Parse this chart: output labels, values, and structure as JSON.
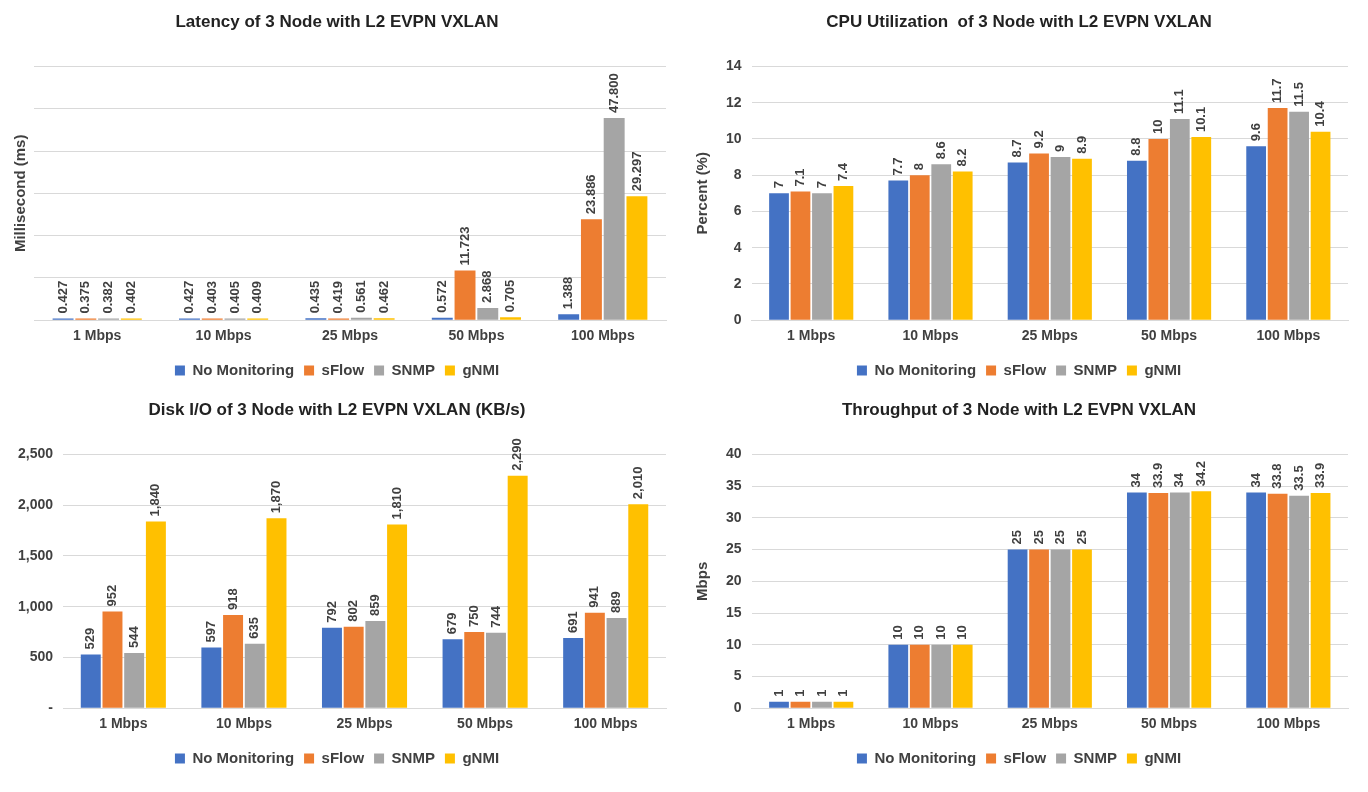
{
  "chart_data": [
    {
      "type": "bar",
      "title": "Latency of 3 Node with L2 EVPN VXLAN",
      "ylabel": "Millisecond (ms)",
      "categories": [
        "1 Mbps",
        "10 Mbps",
        "25 Mbps",
        "50 Mbps",
        "100 Mbps"
      ],
      "ylim": [
        0,
        60
      ],
      "yticks": [
        {
          "value": 0,
          "label": null
        },
        {
          "value": 10,
          "label": null
        },
        {
          "value": 20,
          "label": null
        },
        {
          "value": 30,
          "label": null
        },
        {
          "value": 40,
          "label": null
        },
        {
          "value": 50,
          "label": null
        },
        {
          "value": 60,
          "label": null
        }
      ],
      "tick_labels": "x",
      "grid": "y",
      "legend": "bottom",
      "series": [
        {
          "name": "No Monitoring",
          "color": "#4472c4",
          "values": [
            0.427,
            0.427,
            0.435,
            0.572,
            1.388
          ],
          "value_labels": [
            "0.427",
            "0.427",
            "0.435",
            "0.572",
            "1.388"
          ]
        },
        {
          "name": "sFlow",
          "color": "#ed7d31",
          "values": [
            0.375,
            0.403,
            0.419,
            11.723,
            23.886
          ],
          "value_labels": [
            "0.375",
            "0.403",
            "0.419",
            "11.723",
            "23.886"
          ]
        },
        {
          "name": "SNMP",
          "color": "#a5a5a5",
          "values": [
            0.382,
            0.405,
            0.561,
            2.868,
            47.8
          ],
          "value_labels": [
            "0.382",
            "0.405",
            "0.561",
            "2.868",
            "47.800"
          ]
        },
        {
          "name": "gNMI",
          "color": "#ffc000",
          "values": [
            0.402,
            0.409,
            0.462,
            0.705,
            29.297
          ],
          "value_labels": [
            "0.402",
            "0.409",
            "0.462",
            "0.705",
            "29.297"
          ]
        }
      ]
    },
    {
      "type": "bar",
      "title": "CPU Utilization  of 3 Node with L2 EVPN VXLAN",
      "ylabel": "Percent (%)",
      "categories": [
        "1 Mbps",
        "10 Mbps",
        "25 Mbps",
        "50 Mbps",
        "100 Mbps"
      ],
      "ylim": [
        0,
        14
      ],
      "yticks": [
        0,
        2,
        4,
        6,
        8,
        10,
        12,
        14
      ],
      "grid": "y",
      "legend": "bottom",
      "data_labels": true,
      "series": [
        {
          "name": "No Monitoring",
          "color": "#4472c4",
          "values": [
            7,
            7.7,
            8.7,
            8.8,
            9.6
          ]
        },
        {
          "name": "sFlow",
          "color": "#ed7d31",
          "values": [
            7.1,
            8,
            9.2,
            10,
            11.7
          ]
        },
        {
          "name": "SNMP",
          "color": "#a5a5a5",
          "values": [
            7,
            8.6,
            9,
            11.1,
            11.5
          ]
        },
        {
          "name": "gNMI",
          "color": "#ffc000",
          "values": [
            7.4,
            8.2,
            8.9,
            10.1,
            10.4
          ]
        }
      ]
    },
    {
      "type": "bar",
      "title": "Disk I/O of 3 Node with L2 EVPN VXLAN (KB/s)",
      "categories": [
        "1 Mbps",
        "10 Mbps",
        "25 Mbps",
        "50 Mbps",
        "100 Mbps"
      ],
      "ylim": [
        0,
        2500
      ],
      "yticks": [
        {
          "value": 0,
          "label": "-"
        },
        500,
        {
          "value": 1000,
          "label": "1,000"
        },
        {
          "value": 1500,
          "label": "1,500"
        },
        {
          "value": 2000,
          "label": "2,000"
        },
        {
          "value": 2500,
          "label": "2,500"
        }
      ],
      "grid": "y",
      "legend": "bottom",
      "series": [
        {
          "name": "No Monitoring",
          "color": "#4472c4",
          "values": [
            529,
            597,
            792,
            679,
            691
          ],
          "value_labels": [
            "529",
            "597",
            "792",
            "679",
            "691"
          ]
        },
        {
          "name": "sFlow",
          "color": "#ed7d31",
          "values": [
            952,
            918,
            802,
            750,
            941
          ],
          "value_labels": [
            "952",
            "918",
            "802",
            "750",
            "941"
          ]
        },
        {
          "name": "SNMP",
          "color": "#a5a5a5",
          "values": [
            544,
            635,
            859,
            744,
            889
          ],
          "value_labels": [
            "544",
            "635",
            "859",
            "744",
            "889"
          ]
        },
        {
          "name": "gNMI",
          "color": "#ffc000",
          "values": [
            1840,
            1870,
            1810,
            2290,
            2010
          ],
          "value_labels": [
            "1,840",
            "1,870",
            "1,810",
            "2,290",
            "2,010"
          ]
        }
      ]
    },
    {
      "type": "bar",
      "title": "Throughput of 3 Node with L2 EVPN VXLAN",
      "ylabel": "Mbps",
      "categories": [
        "1 Mbps",
        "10 Mbps",
        "25 Mbps",
        "50 Mbps",
        "100 Mbps"
      ],
      "ylim": [
        0,
        40
      ],
      "yticks": [
        0,
        5,
        10,
        15,
        20,
        25,
        30,
        35,
        40
      ],
      "grid": "y",
      "legend": "bottom",
      "data_labels": true,
      "series": [
        {
          "name": "No Monitoring",
          "color": "#4472c4",
          "values": [
            1,
            10,
            25,
            34,
            34
          ]
        },
        {
          "name": "sFlow",
          "color": "#ed7d31",
          "values": [
            1,
            10,
            25,
            33.9,
            33.8
          ]
        },
        {
          "name": "SNMP",
          "color": "#a5a5a5",
          "values": [
            1,
            10,
            25,
            34,
            33.5
          ]
        },
        {
          "name": "gNMI",
          "color": "#ffc000",
          "values": [
            1,
            10,
            25,
            34.2,
            33.9
          ]
        }
      ]
    }
  ]
}
